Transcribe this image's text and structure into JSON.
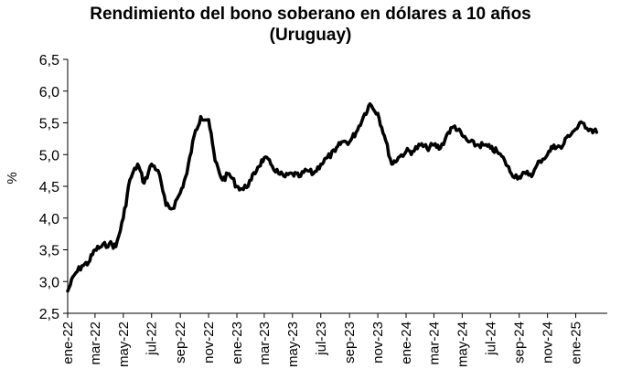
{
  "chart_data": {
    "type": "line",
    "title": "Rendimiento del bono soberano en dólares a 10 años",
    "subtitle": "(Uruguay)",
    "xlabel": "",
    "ylabel": "%",
    "ylim": [
      2.5,
      6.5
    ],
    "yticks": [
      "2,5",
      "3,0",
      "3,5",
      "4,0",
      "4,5",
      "5,0",
      "5,5",
      "6,0",
      "6,5"
    ],
    "xticks": [
      "ene-22",
      "mar-22",
      "may-22",
      "jul-22",
      "sep-22",
      "nov-22",
      "ene-23",
      "mar-23",
      "may-23",
      "jul-23",
      "sep-23",
      "nov-23",
      "ene-24",
      "mar-24",
      "may-24",
      "jul-24",
      "sep-24",
      "nov-24",
      "ene-25"
    ],
    "grid": false,
    "legend": "none",
    "line_color": "#000000",
    "series": [
      {
        "x": [
          "2022-01-01",
          "2022-01-15",
          "2022-02-01",
          "2022-02-15",
          "2022-03-01",
          "2022-03-15",
          "2022-04-01",
          "2022-04-15",
          "2022-05-01",
          "2022-05-15",
          "2022-06-01",
          "2022-06-15",
          "2022-07-01",
          "2022-07-15",
          "2022-08-01",
          "2022-08-15",
          "2022-09-01",
          "2022-09-15",
          "2022-10-01",
          "2022-10-15",
          "2022-11-01",
          "2022-11-15",
          "2022-12-01",
          "2022-12-15",
          "2023-01-01",
          "2023-01-15",
          "2023-02-01",
          "2023-02-15",
          "2023-03-01",
          "2023-03-15",
          "2023-04-01",
          "2023-04-15",
          "2023-05-01",
          "2023-05-15",
          "2023-06-01",
          "2023-06-15",
          "2023-07-01",
          "2023-07-15",
          "2023-08-01",
          "2023-08-15",
          "2023-09-01",
          "2023-09-15",
          "2023-10-01",
          "2023-10-15",
          "2023-11-01",
          "2023-11-15",
          "2023-12-01",
          "2023-12-15",
          "2024-01-01",
          "2024-01-15",
          "2024-02-01",
          "2024-02-15",
          "2024-03-01",
          "2024-03-15",
          "2024-04-01",
          "2024-04-15",
          "2024-05-01",
          "2024-05-15",
          "2024-06-01",
          "2024-06-15",
          "2024-07-01",
          "2024-07-15",
          "2024-08-01",
          "2024-08-15",
          "2024-09-01",
          "2024-09-15",
          "2024-10-01",
          "2024-10-15",
          "2024-11-01",
          "2024-11-15",
          "2024-12-01",
          "2024-12-15",
          "2025-01-01",
          "2025-01-15",
          "2025-02-01",
          "2025-02-15"
        ],
        "values": [
          2.85,
          3.1,
          3.25,
          3.3,
          3.5,
          3.55,
          3.6,
          3.55,
          4.0,
          4.6,
          4.85,
          4.55,
          4.85,
          4.75,
          4.2,
          4.15,
          4.4,
          4.7,
          5.3,
          5.6,
          5.55,
          4.9,
          4.6,
          4.7,
          4.5,
          4.45,
          4.6,
          4.8,
          4.95,
          4.85,
          4.7,
          4.65,
          4.7,
          4.65,
          4.75,
          4.7,
          4.85,
          4.95,
          5.05,
          5.2,
          5.2,
          5.35,
          5.6,
          5.8,
          5.65,
          5.3,
          4.85,
          4.95,
          5.05,
          5.05,
          5.15,
          5.1,
          5.15,
          5.1,
          5.35,
          5.45,
          5.3,
          5.2,
          5.15,
          5.15,
          5.1,
          5.05,
          4.9,
          4.7,
          4.65,
          4.7,
          4.7,
          4.9,
          5.0,
          5.15,
          5.1,
          5.3,
          5.4,
          5.5,
          5.4,
          5.35
        ]
      }
    ]
  }
}
